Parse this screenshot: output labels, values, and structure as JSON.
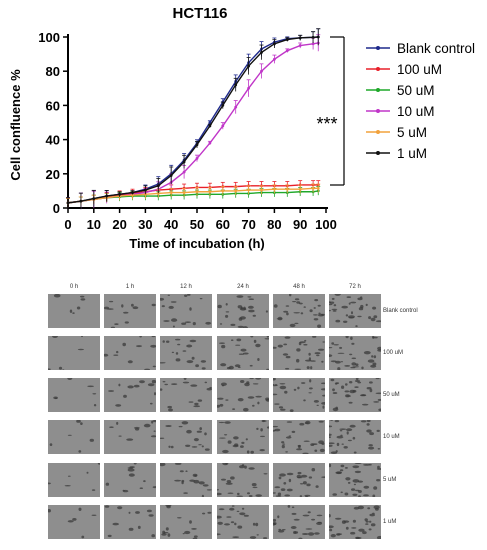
{
  "chart_data": {
    "type": "line",
    "title": "HCT116",
    "xlabel": "Time of incubation (h)",
    "ylabel": "Cell confluence %",
    "xlim": [
      0,
      100
    ],
    "ylim": [
      0,
      100
    ],
    "xticks": [
      0,
      10,
      20,
      30,
      40,
      50,
      60,
      70,
      80,
      90,
      100
    ],
    "yticks": [
      0,
      20,
      40,
      60,
      80,
      100
    ],
    "annotation": "***",
    "legend_position": "right",
    "series": [
      {
        "name": "Blank control",
        "color": "#1f2a8c",
        "marker": "dash",
        "x": [
          0,
          5,
          10,
          15,
          20,
          25,
          30,
          35,
          40,
          45,
          50,
          55,
          60,
          65,
          70,
          75,
          80,
          85,
          90,
          95,
          97
        ],
        "y": [
          3,
          4,
          5.5,
          7,
          8,
          9,
          11,
          14,
          20,
          28,
          38,
          50,
          62,
          74,
          85,
          93,
          97,
          99,
          99.5,
          99.8,
          100
        ]
      },
      {
        "name": "100 uM",
        "color": "#e8202a",
        "marker": "cross",
        "x": [
          0,
          5,
          10,
          15,
          20,
          25,
          30,
          35,
          40,
          45,
          50,
          55,
          60,
          65,
          70,
          75,
          80,
          85,
          90,
          95,
          97
        ],
        "y": [
          3,
          4,
          5,
          6.5,
          7.5,
          8.5,
          9.5,
          10.5,
          11,
          11.5,
          12,
          12,
          12.5,
          12.5,
          13,
          13,
          13,
          13,
          13.5,
          13.5,
          13.5
        ]
      },
      {
        "name": "50 uM",
        "color": "#1fa82a",
        "marker": "dash",
        "x": [
          0,
          5,
          10,
          15,
          20,
          25,
          30,
          35,
          40,
          45,
          50,
          55,
          60,
          65,
          70,
          75,
          80,
          85,
          90,
          95,
          97
        ],
        "y": [
          3,
          4,
          5,
          6,
          6.5,
          7,
          7,
          7,
          7.5,
          7.5,
          8,
          8,
          8,
          8.5,
          8.5,
          9,
          9,
          9,
          9.5,
          9.5,
          10
        ]
      },
      {
        "name": "10  uM",
        "color": "#c036c8",
        "marker": "triangle",
        "x": [
          0,
          5,
          10,
          15,
          20,
          25,
          30,
          35,
          40,
          45,
          50,
          55,
          60,
          65,
          70,
          75,
          80,
          85,
          90,
          95,
          97
        ],
        "y": [
          3,
          4,
          5,
          6,
          7,
          8,
          9,
          11,
          15,
          21,
          29,
          38,
          48,
          59,
          70,
          80,
          87,
          92,
          95,
          96,
          96.5
        ]
      },
      {
        "name": "5 uM",
        "color": "#f2a23c",
        "marker": "dash",
        "x": [
          0,
          5,
          10,
          15,
          20,
          25,
          30,
          35,
          40,
          45,
          50,
          55,
          60,
          65,
          70,
          75,
          80,
          85,
          90,
          95,
          97
        ],
        "y": [
          3,
          4,
          5,
          6,
          7,
          7.5,
          8,
          8.5,
          9,
          9,
          9.5,
          9.5,
          10,
          10,
          10.5,
          10.5,
          11,
          11,
          11,
          11.5,
          11.5
        ]
      },
      {
        "name": "1 uM",
        "color": "#111111",
        "marker": "diamond",
        "x": [
          0,
          5,
          10,
          15,
          20,
          25,
          30,
          35,
          40,
          45,
          50,
          55,
          60,
          65,
          70,
          75,
          80,
          85,
          90,
          95,
          97
        ],
        "y": [
          3,
          4,
          5.5,
          7,
          8,
          9,
          10.5,
          13,
          19,
          27,
          37,
          48,
          60,
          72,
          83,
          91,
          96,
          98.5,
          99.5,
          99.8,
          100
        ]
      }
    ]
  },
  "image_grid": {
    "columns": [
      "0 h",
      "1 h",
      "12 h",
      "24 h",
      "48 h",
      "72 h"
    ],
    "rows": [
      "Blank control",
      "100 uM",
      "50 uM",
      "10 uM",
      "5 uM",
      "1 uM"
    ],
    "background_color": "#8e8e8e",
    "cell_color": "#3a3a3a"
  }
}
